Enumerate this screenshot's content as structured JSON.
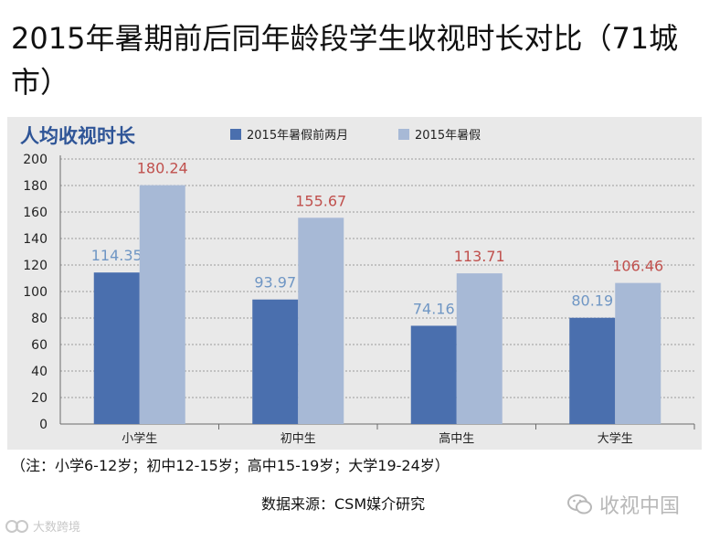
{
  "page": {
    "title": "2015年暑期前后同年龄段学生收视时长对比（71城市）",
    "footnote": "（注：小学6-12岁；初中12-15岁；高中15-19岁；大学19-24岁）",
    "source": "数据来源：CSM媒介研究",
    "wechat_label": "收视中国",
    "watermark_text": "大数跨境"
  },
  "chart_data": {
    "type": "bar",
    "title": "人均收视时长",
    "categories": [
      "小学生",
      "初中生",
      "高中生",
      "大学生"
    ],
    "series": [
      {
        "name": "2015年暑假前两月",
        "values": [
          114.35,
          93.97,
          74.16,
          80.19
        ],
        "color": "#4a6fae",
        "label_color": "#6f96c4"
      },
      {
        "name": "2015年暑假",
        "values": [
          180.24,
          155.67,
          113.71,
          106.46
        ],
        "color": "#a7b9d6",
        "label_color": "#c0504d"
      }
    ],
    "y_ticks": [
      "0",
      "20",
      "40",
      "60",
      "80",
      "100",
      "120",
      "140",
      "160",
      "180",
      "200"
    ],
    "ylim": [
      0,
      200
    ],
    "grid": true,
    "legend_position": "top",
    "title_color": "#2f5597"
  }
}
